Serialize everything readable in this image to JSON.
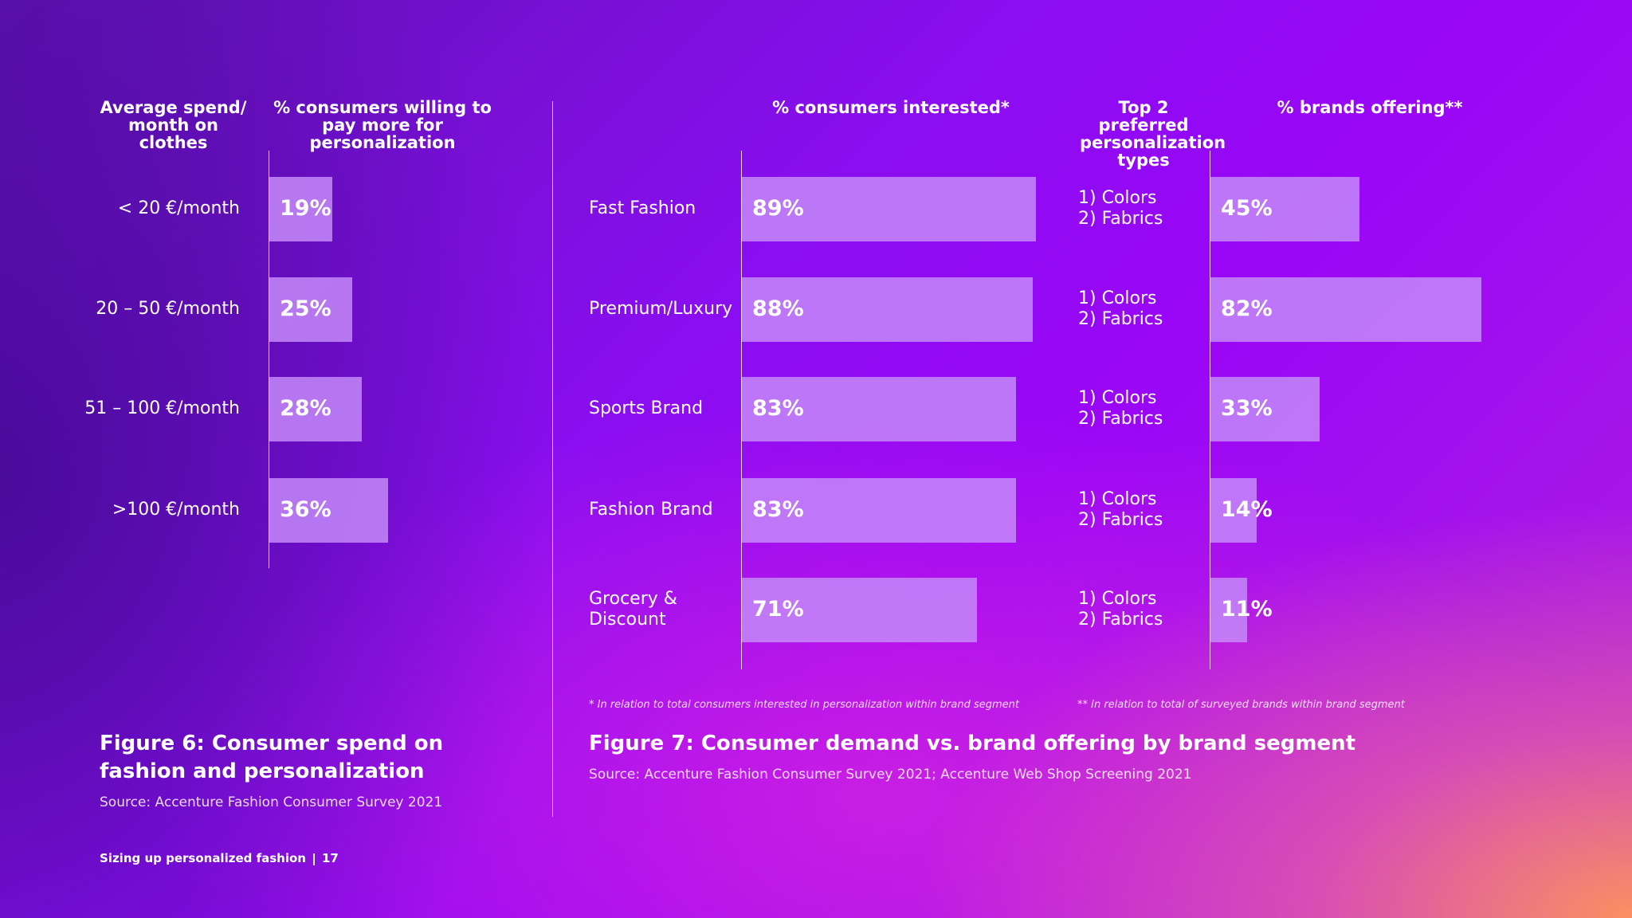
{
  "chart_data": [
    {
      "type": "bar",
      "title": "Figure 6: Consumer spend on fashion and personalization",
      "source": "Source: Accenture Fashion Consumer Survey 2021",
      "category_header": "Average spend/ month on clothes",
      "value_header": "% consumers willing to pay more for personalization",
      "categories": [
        "< 20 €/month",
        "20 – 50 €/month",
        "51 – 100 €/month",
        ">100 €/month"
      ],
      "values": [
        19,
        25,
        28,
        36
      ],
      "value_labels": [
        "19%",
        "25%",
        "28%",
        "36%"
      ],
      "color": "#c48af8"
    },
    {
      "type": "bar",
      "title": "Figure 7: Consumer demand vs. brand offering by brand segment",
      "source": "Source: Accenture Fashion Consumer Survey 2021; Accenture Web Shop Screening 2021",
      "categories": [
        "Fast Fashion",
        "Premium/Luxury",
        "Sports Brand",
        "Fashion Brand",
        "Grocery & Discount"
      ],
      "series": [
        {
          "name": "% consumers interested*",
          "color": "#c48af8",
          "values": [
            89,
            88,
            83,
            83,
            71
          ],
          "value_labels": [
            "89%",
            "88%",
            "83%",
            "83%",
            "71%"
          ]
        },
        {
          "name": "% brands offering**",
          "color": "#c48af8",
          "values": [
            45,
            82,
            33,
            14,
            11
          ],
          "value_labels": [
            "45%",
            "82%",
            "33%",
            "14%",
            "11%"
          ]
        }
      ],
      "preferred_header": "Top 2 preferred personalization types",
      "preferred_types": [
        [
          "1) Colors",
          "2) Fabrics"
        ],
        [
          "1) Colors",
          "2) Fabrics"
        ],
        [
          "1) Colors",
          "2) Fabrics"
        ],
        [
          "1) Colors",
          "2) Fabrics"
        ],
        [
          "1) Colors",
          "2) Fabrics"
        ]
      ],
      "footnotes": [
        "* In relation to total consumers interested in personalization within brand segment",
        "** In relation to total of surveyed brands within brand segment"
      ]
    }
  ],
  "footer": {
    "text": "Sizing up personalized fashion",
    "page": "17"
  }
}
